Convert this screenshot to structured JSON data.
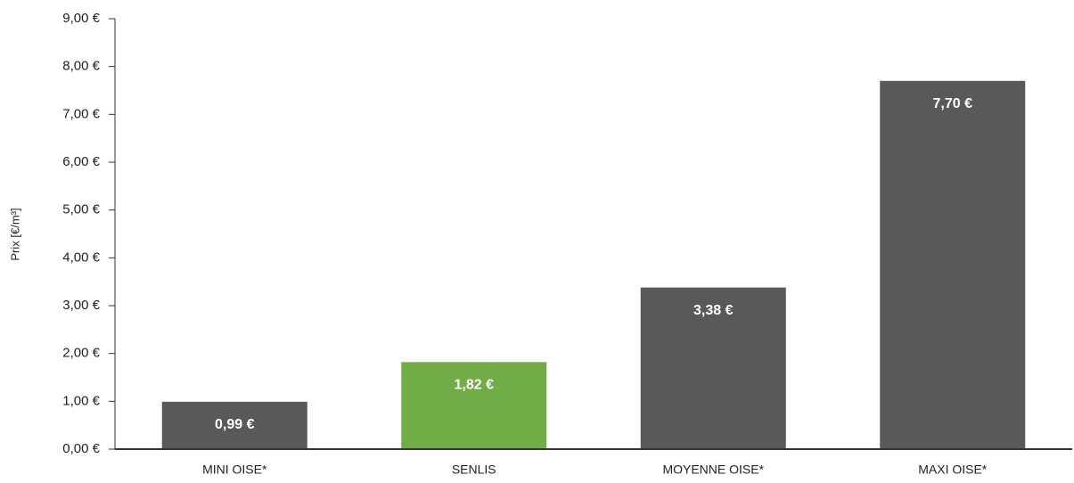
{
  "chart_data": {
    "type": "bar",
    "y_label": "Prix [€/m³]",
    "categories": [
      "MINI OISE*",
      "SENLIS",
      "MOYENNE OISE*",
      "MAXI OISE*"
    ],
    "values": [
      0.99,
      1.82,
      3.38,
      7.7
    ],
    "value_labels": [
      "0,99 €",
      "1,82 €",
      "3,38 €",
      "7,70 €"
    ],
    "colors": [
      "#595959",
      "#70ad47",
      "#595959",
      "#595959"
    ],
    "ylim": [
      0,
      9
    ],
    "yticks": [
      {
        "value": 0,
        "label": "0,00 €"
      },
      {
        "value": 1,
        "label": "1,00 €"
      },
      {
        "value": 2,
        "label": "2,00 €"
      },
      {
        "value": 3,
        "label": "3,00 €"
      },
      {
        "value": 4,
        "label": "4,00 €"
      },
      {
        "value": 5,
        "label": "5,00 €"
      },
      {
        "value": 6,
        "label": "6,00 €"
      },
      {
        "value": 7,
        "label": "7,00 €"
      },
      {
        "value": 8,
        "label": "8,00 €"
      },
      {
        "value": 9,
        "label": "9,00 €"
      }
    ],
    "grid": false
  }
}
